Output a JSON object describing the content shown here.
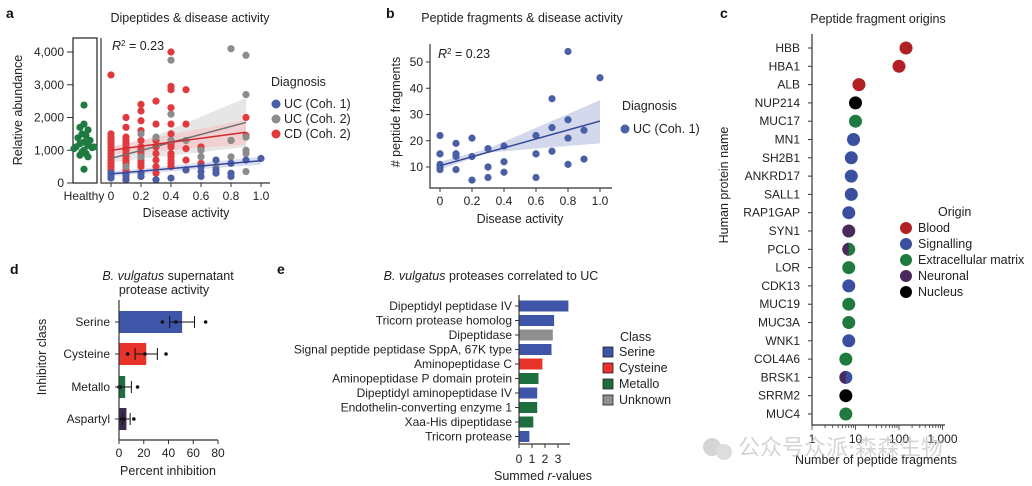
{
  "colors": {
    "uc1": "#4a5fa5",
    "uc2": "#8c8c8c",
    "cd2": "#e0393e",
    "healthy": "#1e7a3e",
    "blood": "#b02025",
    "signalling": "#3b4fa0",
    "ecm": "#1f7a40",
    "neuronal": "#4a2a5a",
    "nucleus": "#000000",
    "serine": "#3f55a8",
    "cysteine": "#e8322a",
    "metallo": "#1f6e3f",
    "aspartyl": "#3e2a4e",
    "unknown": "#8f8f8f"
  },
  "watermark": "公众号众派·森森生物",
  "chart_data": [
    {
      "panel": "a",
      "type": "scatter",
      "title": "Dipeptides & disease activity",
      "xlabel": "Disease activity",
      "ylabel": "Relative abundance",
      "annotation": "R² = 0.23",
      "xlim": [
        0,
        1.0
      ],
      "ylim": [
        0,
        4400
      ],
      "xticks": [
        0,
        0.2,
        0.4,
        0.6,
        0.8,
        1.0
      ],
      "xtick_labels": [
        "0",
        "0.2",
        "0.4",
        "0.6",
        "0.8",
        "1.0"
      ],
      "yticks": [
        0,
        1000,
        2000,
        3000,
        4000
      ],
      "ytick_labels": [
        "0",
        "1,000",
        "2,000",
        "3,000",
        "4,000"
      ],
      "healthy_label": "Healthy",
      "legend_title": "Diagnosis",
      "legend_position": "right",
      "healthy": [
        2380,
        1800,
        1700,
        1620,
        1500,
        1450,
        1380,
        1300,
        1250,
        1200,
        1150,
        1100,
        1080,
        1000,
        950,
        900,
        850,
        800,
        1100,
        1050,
        420
      ],
      "series": [
        {
          "name": "UC (Coh. 1)",
          "color_key": "uc1",
          "points": [
            [
              0,
              300
            ],
            [
              0,
              200
            ],
            [
              0,
              150
            ],
            [
              0.1,
              250
            ],
            [
              0.1,
              100
            ],
            [
              0.2,
              300
            ],
            [
              0.2,
              200
            ],
            [
              0.3,
              100
            ],
            [
              0.4,
              150
            ],
            [
              0.6,
              350
            ],
            [
              0.6,
              200
            ],
            [
              0.7,
              700
            ],
            [
              0.7,
              400
            ],
            [
              0.7,
              300
            ],
            [
              0.8,
              600
            ],
            [
              0.8,
              300
            ],
            [
              0.8,
              200
            ],
            [
              0.9,
              700
            ],
            [
              1.0,
              750
            ],
            [
              0.5,
              400
            ],
            [
              0.6,
              500
            ]
          ],
          "fit": [
            [
              0,
              280
            ],
            [
              1.0,
              680
            ]
          ]
        },
        {
          "name": "UC (Coh. 2)",
          "color_key": "uc2",
          "points": [
            [
              0.4,
              3750
            ],
            [
              0.4,
              2100
            ],
            [
              0.4,
              1300
            ],
            [
              0.3,
              1400
            ],
            [
              0.2,
              1500
            ],
            [
              0.2,
              800
            ],
            [
              0.2,
              200
            ],
            [
              0.1,
              500
            ],
            [
              0,
              300
            ],
            [
              0.6,
              1000
            ],
            [
              0.6,
              800
            ],
            [
              0.6,
              500
            ],
            [
              0.8,
              4100
            ],
            [
              0.8,
              1300
            ],
            [
              0.8,
              800
            ],
            [
              0.9,
              3900
            ],
            [
              0.9,
              2700
            ],
            [
              0.9,
              1400
            ],
            [
              0.9,
              1000
            ],
            [
              0.9,
              900
            ],
            [
              0.9,
              350
            ],
            [
              0.7,
              500
            ],
            [
              0.5,
              1300
            ]
          ],
          "fit": [
            [
              0,
              750
            ],
            [
              0.9,
              1850
            ]
          ]
        },
        {
          "name": "CD (Coh. 2)",
          "color_key": "cd2",
          "points": [
            [
              0,
              3300
            ],
            [
              0,
              1500
            ],
            [
              0,
              1400
            ],
            [
              0,
              1300
            ],
            [
              0,
              1200
            ],
            [
              0,
              1100
            ],
            [
              0,
              1000
            ],
            [
              0,
              900
            ],
            [
              0,
              800
            ],
            [
              0,
              700
            ],
            [
              0,
              600
            ],
            [
              0,
              500
            ],
            [
              0,
              400
            ],
            [
              0,
              300
            ],
            [
              0.1,
              2000
            ],
            [
              0.1,
              1700
            ],
            [
              0.1,
              1400
            ],
            [
              0.1,
              1300
            ],
            [
              0.1,
              1200
            ],
            [
              0.1,
              1100
            ],
            [
              0.1,
              1000
            ],
            [
              0.1,
              900
            ],
            [
              0.1,
              800
            ],
            [
              0.1,
              700
            ],
            [
              0.1,
              600
            ],
            [
              0.1,
              500
            ],
            [
              0.1,
              400
            ],
            [
              0.1,
              300
            ],
            [
              0.1,
              200
            ],
            [
              0.1,
              100
            ],
            [
              0.2,
              2400
            ],
            [
              0.2,
              2200
            ],
            [
              0.2,
              1900
            ],
            [
              0.2,
              1600
            ],
            [
              0.2,
              1300
            ],
            [
              0.2,
              1100
            ],
            [
              0.2,
              1000
            ],
            [
              0.2,
              900
            ],
            [
              0.2,
              700
            ],
            [
              0.2,
              600
            ],
            [
              0.2,
              500
            ],
            [
              0.3,
              2500
            ],
            [
              0.3,
              1800
            ],
            [
              0.3,
              1300
            ],
            [
              0.3,
              1100
            ],
            [
              0.3,
              900
            ],
            [
              0.3,
              700
            ],
            [
              0.3,
              500
            ],
            [
              0.3,
              300
            ],
            [
              0.4,
              4000
            ],
            [
              0.4,
              2950
            ],
            [
              0.4,
              2850
            ],
            [
              0.4,
              2300
            ],
            [
              0.4,
              1800
            ],
            [
              0.4,
              1500
            ],
            [
              0.4,
              1300
            ],
            [
              0.4,
              1200
            ],
            [
              0.4,
              1100
            ],
            [
              0.4,
              900
            ],
            [
              0.4,
              800
            ],
            [
              0.4,
              700
            ],
            [
              0.4,
              600
            ],
            [
              0.4,
              500
            ],
            [
              0.5,
              2850
            ],
            [
              0.5,
              1800
            ],
            [
              0.5,
              1050
            ],
            [
              0.5,
              700
            ],
            [
              0.5,
              400
            ],
            [
              0.6,
              1100
            ],
            [
              0.6,
              600
            ],
            [
              0.8,
              1300
            ],
            [
              0.9,
              2000
            ],
            [
              0.9,
              1450
            ]
          ],
          "fit": [
            [
              0,
              1000
            ],
            [
              0.9,
              1550
            ]
          ]
        }
      ]
    },
    {
      "panel": "b",
      "type": "scatter",
      "title": "Peptide fragments & disease activity",
      "xlabel": "Disease activity",
      "ylabel": "# peptide fragments",
      "annotation": "R² = 0.23",
      "xlim": [
        0,
        1.0
      ],
      "ylim": [
        3,
        55
      ],
      "xticks": [
        0,
        0.2,
        0.4,
        0.6,
        0.8,
        1.0
      ],
      "xtick_labels": [
        "0",
        "0.2",
        "0.4",
        "0.6",
        "0.8",
        "1.0"
      ],
      "yticks": [
        10,
        20,
        30,
        40,
        50
      ],
      "ytick_labels": [
        "10",
        "20",
        "30",
        "40",
        "50"
      ],
      "legend_title": "Diagnosis",
      "legend_position": "right",
      "series": [
        {
          "name": "UC (Coh. 1)",
          "color_key": "uc1",
          "points": [
            [
              0,
              22
            ],
            [
              0,
              15
            ],
            [
              0,
              15
            ],
            [
              0,
              11
            ],
            [
              0,
              10
            ],
            [
              0,
              9
            ],
            [
              0.1,
              19
            ],
            [
              0.1,
              15
            ],
            [
              0.1,
              14
            ],
            [
              0.1,
              15
            ],
            [
              0.1,
              9
            ],
            [
              0.2,
              21
            ],
            [
              0.2,
              14
            ],
            [
              0.2,
              5
            ],
            [
              0.3,
              17
            ],
            [
              0.3,
              10
            ],
            [
              0.3,
              10
            ],
            [
              0.3,
              6
            ],
            [
              0.4,
              18
            ],
            [
              0.4,
              12
            ],
            [
              0.4,
              8
            ],
            [
              0.6,
              22
            ],
            [
              0.6,
              15
            ],
            [
              0.6,
              15
            ],
            [
              0.6,
              6
            ],
            [
              0.7,
              36
            ],
            [
              0.7,
              25
            ],
            [
              0.7,
              16
            ],
            [
              0.8,
              54
            ],
            [
              0.8,
              28
            ],
            [
              0.8,
              21
            ],
            [
              0.8,
              11
            ],
            [
              0.9,
              24
            ],
            [
              0.9,
              13
            ],
            [
              1.0,
              44
            ]
          ],
          "fit": [
            [
              0,
              10.5
            ],
            [
              1.0,
              27.5
            ]
          ]
        }
      ]
    },
    {
      "panel": "c",
      "type": "scatter",
      "title": "Peptide fragment origins",
      "xlabel": "Number of peptide fragments",
      "ylabel": "Human protein name",
      "xscale": "log",
      "xlim": [
        1,
        1500
      ],
      "xticks": [
        1,
        10,
        100,
        1000
      ],
      "xtick_labels": [
        "1",
        "10",
        "100",
        "1,000"
      ],
      "legend_title": "Origin",
      "legend_position": "right",
      "legend": [
        {
          "label": "Blood",
          "color_key": "blood"
        },
        {
          "label": "Signalling",
          "color_key": "signalling"
        },
        {
          "label": "Extracellular matrix",
          "color_key": "ecm"
        },
        {
          "label": "Neuronal",
          "color_key": "neuronal"
        },
        {
          "label": "Nucleus",
          "color_key": "nucleus"
        }
      ],
      "proteins": [
        {
          "name": "HBB",
          "value": 145,
          "origin": [
            "blood"
          ]
        },
        {
          "name": "HBA1",
          "value": 100,
          "origin": [
            "blood"
          ]
        },
        {
          "name": "ALB",
          "value": 12,
          "origin": [
            "blood"
          ]
        },
        {
          "name": "NUP214",
          "value": 10,
          "origin": [
            "nucleus"
          ]
        },
        {
          "name": "MUC17",
          "value": 10,
          "origin": [
            "ecm"
          ]
        },
        {
          "name": "MN1",
          "value": 9,
          "origin": [
            "signalling"
          ]
        },
        {
          "name": "SH2B1",
          "value": 8,
          "origin": [
            "signalling"
          ]
        },
        {
          "name": "ANKRD17",
          "value": 8,
          "origin": [
            "signalling"
          ]
        },
        {
          "name": "SALL1",
          "value": 8,
          "origin": [
            "signalling"
          ]
        },
        {
          "name": "RAP1GAP",
          "value": 7,
          "origin": [
            "signalling"
          ]
        },
        {
          "name": "SYN1",
          "value": 7,
          "origin": [
            "neuronal"
          ]
        },
        {
          "name": "PCLO",
          "value": 7,
          "origin": [
            "neuronal",
            "ecm"
          ]
        },
        {
          "name": "LOR",
          "value": 7,
          "origin": [
            "ecm"
          ]
        },
        {
          "name": "CDK13",
          "value": 7,
          "origin": [
            "signalling"
          ]
        },
        {
          "name": "MUC19",
          "value": 7,
          "origin": [
            "ecm"
          ]
        },
        {
          "name": "MUC3A",
          "value": 7,
          "origin": [
            "ecm"
          ]
        },
        {
          "name": "WNK1",
          "value": 7,
          "origin": [
            "signalling"
          ]
        },
        {
          "name": "COL4A6",
          "value": 6,
          "origin": [
            "ecm"
          ]
        },
        {
          "name": "BRSK1",
          "value": 6,
          "origin": [
            "neuronal",
            "signalling"
          ]
        },
        {
          "name": "SRRM2",
          "value": 6,
          "origin": [
            "nucleus"
          ]
        },
        {
          "name": "MUC4",
          "value": 6,
          "origin": [
            "ecm"
          ]
        }
      ]
    },
    {
      "panel": "d",
      "type": "bar",
      "orientation": "horizontal",
      "title_italic": "B. vulgatus",
      "title_rest": " supernatant",
      "title_line2": "protease activity",
      "xlabel": "Percent inhibition",
      "ylabel": "Inhibitor class",
      "xlim": [
        0,
        80
      ],
      "xticks": [
        0,
        20,
        40,
        60,
        80
      ],
      "xtick_labels": [
        "0",
        "20",
        "40",
        "60",
        "80"
      ],
      "categories": [
        "Serine",
        "Cysteine",
        "Metallo",
        "Aspartyl"
      ],
      "values": [
        51,
        22,
        5,
        6
      ],
      "errors": [
        10,
        9,
        5,
        3
      ],
      "color_keys": [
        "serine",
        "cysteine",
        "metallo",
        "aspartyl"
      ],
      "replicates": [
        [
          35,
          46,
          70
        ],
        [
          7,
          21,
          38
        ],
        [
          0,
          1,
          15
        ],
        [
          1,
          4,
          12
        ]
      ]
    },
    {
      "panel": "e",
      "type": "bar",
      "orientation": "horizontal",
      "title_italic": "B. vulgatus",
      "title_rest": " proteases correlated to UC",
      "xlabel_pre": "Summed ",
      "xlabel_italic": "r",
      "xlabel_post": "-values",
      "xlim": [
        0,
        3.8
      ],
      "xticks": [
        0,
        1,
        2,
        3
      ],
      "xtick_labels": [
        "0",
        "1",
        "2",
        "3"
      ],
      "legend_title": "Class",
      "legend_position": "right",
      "legend": [
        {
          "label": "Serine",
          "color_key": "serine"
        },
        {
          "label": "Cysteine",
          "color_key": "cysteine"
        },
        {
          "label": "Metallo",
          "color_key": "metallo"
        },
        {
          "label": "Unknown",
          "color_key": "unknown"
        }
      ],
      "categories": [
        "Dipeptidyl peptidase IV",
        "Tricorn protease homolog",
        "Dipeptidase",
        "Signal peptide peptidase SppA, 67K type",
        "Aminopeptidase C",
        "Aminopeptidase P domain protein",
        "Dipeptidyl aminopeptidase IV",
        "Endothelin-converting enzyme 1",
        "Xaa-His dipeptidase",
        "Tricorn protease"
      ],
      "values": [
        3.8,
        2.7,
        2.6,
        2.5,
        1.8,
        1.5,
        1.4,
        1.4,
        1.1,
        0.8
      ],
      "color_keys": [
        "serine",
        "serine",
        "unknown",
        "serine",
        "cysteine",
        "metallo",
        "serine",
        "metallo",
        "metallo",
        "serine"
      ]
    }
  ]
}
